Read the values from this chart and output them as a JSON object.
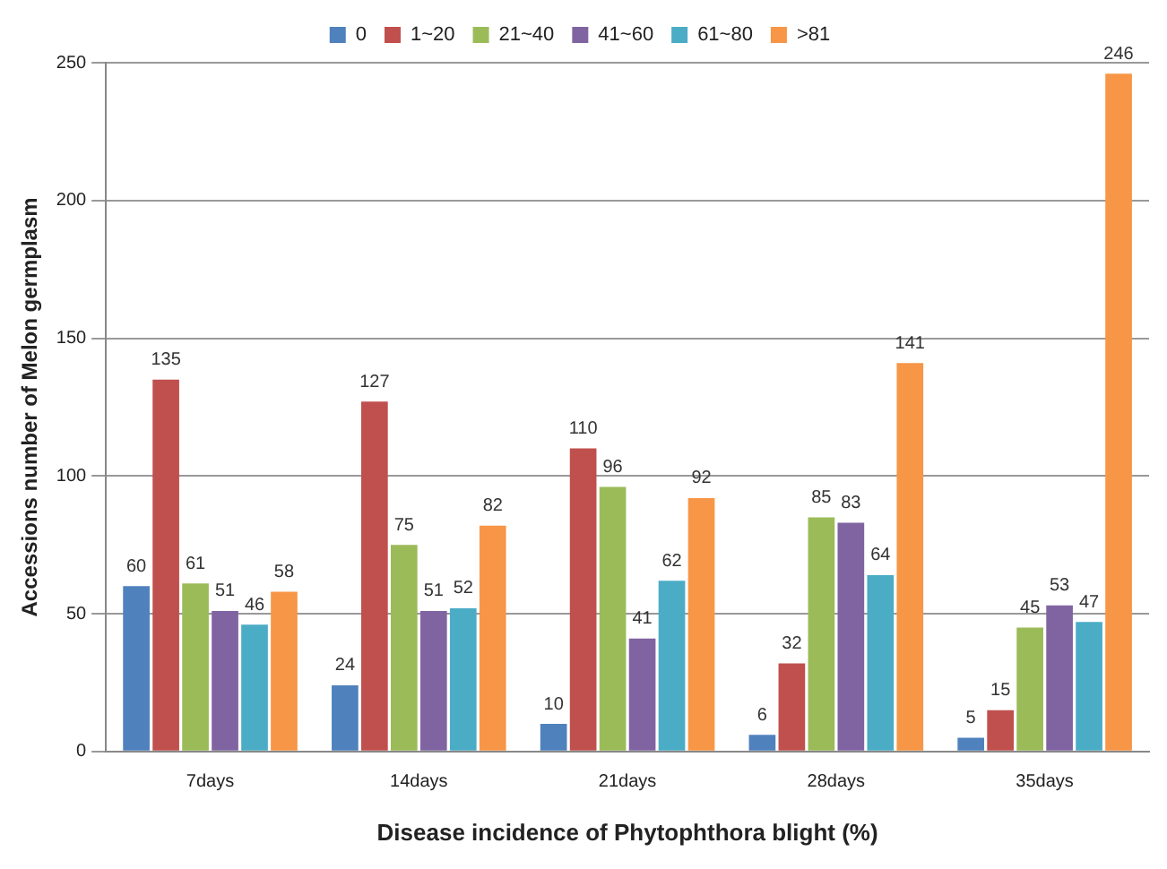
{
  "chart_data": {
    "type": "bar",
    "xlabel": "Disease incidence of Phytophthora blight (%)",
    "ylabel": "Accessions number of Melon germplasm",
    "categories": [
      "7days",
      "14days",
      "21days",
      "28days",
      "35days"
    ],
    "series": [
      {
        "name": "0",
        "color": "#4f81bd",
        "values": [
          60,
          24,
          10,
          6,
          5
        ]
      },
      {
        "name": "1~20",
        "color": "#c0504d",
        "values": [
          135,
          127,
          110,
          32,
          15
        ]
      },
      {
        "name": "21~40",
        "color": "#9bbb59",
        "values": [
          61,
          75,
          96,
          85,
          45
        ]
      },
      {
        "name": "41~60",
        "color": "#8064a2",
        "values": [
          51,
          51,
          41,
          83,
          53
        ]
      },
      {
        "name": "61~80",
        "color": "#4bacc6",
        "values": [
          46,
          52,
          62,
          64,
          47
        ]
      },
      {
        "name": ">81",
        "color": "#f79646",
        "values": [
          58,
          82,
          92,
          141,
          246
        ]
      }
    ],
    "ylim": [
      0,
      250
    ],
    "yticks": [
      0,
      50,
      100,
      150,
      200,
      250
    ],
    "grid": "y",
    "legend": "top",
    "data_labels": true
  }
}
